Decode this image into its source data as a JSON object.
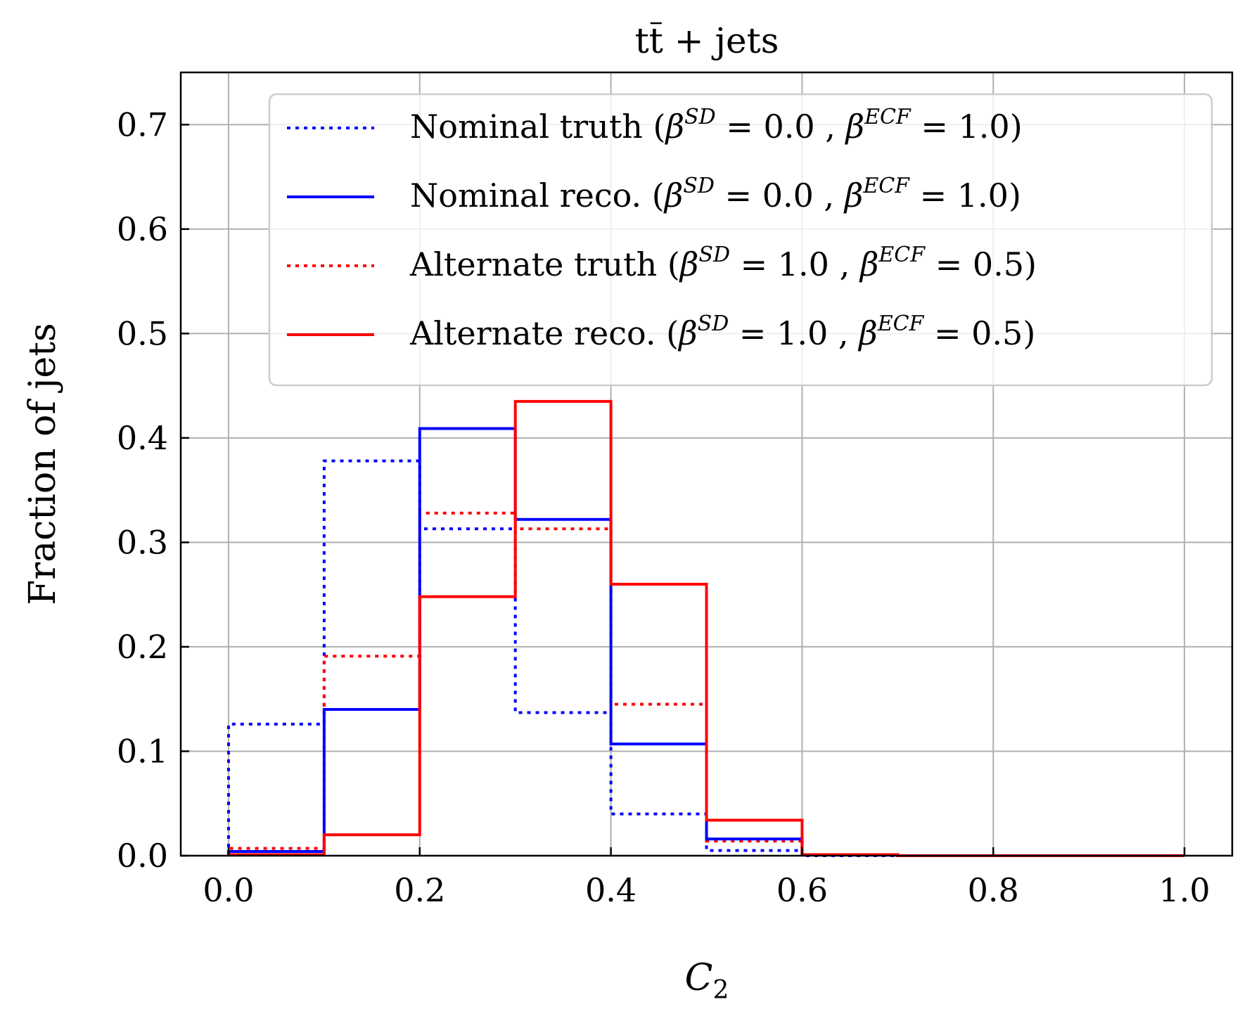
{
  "chart_data": {
    "type": "histogram-step",
    "title": "tt̄ + jets",
    "title_parts": {
      "base": "t",
      "bar": "t",
      "rest": " + jets"
    },
    "xlabel": "C",
    "xlabel_sub": "2",
    "ylabel": "Fraction of jets",
    "xlim": [
      -0.05,
      1.05
    ],
    "ylim": [
      0.0,
      0.75
    ],
    "xticks": [
      0.0,
      0.2,
      0.4,
      0.6,
      0.8,
      1.0
    ],
    "xtick_labels": [
      "0.0",
      "0.2",
      "0.4",
      "0.6",
      "0.8",
      "1.0"
    ],
    "yticks": [
      0.0,
      0.1,
      0.2,
      0.3,
      0.4,
      0.5,
      0.6,
      0.7
    ],
    "ytick_labels": [
      "0.0",
      "0.1",
      "0.2",
      "0.3",
      "0.4",
      "0.5",
      "0.6",
      "0.7"
    ],
    "grid": true,
    "legend_position": "upper-right",
    "bin_edges": [
      0.0,
      0.1,
      0.2,
      0.3,
      0.4,
      0.5,
      0.6,
      0.7,
      0.8,
      0.9,
      1.0
    ],
    "series": [
      {
        "name": "Nominal truth",
        "beta_sd": "0.0",
        "beta_ecf": "1.0",
        "color": "#0000ff",
        "style": "dotted",
        "values": [
          0.126,
          0.378,
          0.313,
          0.137,
          0.04,
          0.005,
          0.0,
          0.0,
          0.0,
          0.0
        ]
      },
      {
        "name": "Nominal reco.",
        "beta_sd": "0.0",
        "beta_ecf": "1.0",
        "color": "#0000ff",
        "style": "solid",
        "values": [
          0.004,
          0.14,
          0.409,
          0.322,
          0.107,
          0.016,
          0.001,
          0.0,
          0.0,
          0.0
        ]
      },
      {
        "name": "Alternate truth",
        "beta_sd": "1.0",
        "beta_ecf": "0.5",
        "color": "#ff0000",
        "style": "dotted",
        "values": [
          0.007,
          0.191,
          0.328,
          0.313,
          0.145,
          0.014,
          0.001,
          0.0,
          0.0,
          0.0
        ]
      },
      {
        "name": "Alternate reco.",
        "beta_sd": "1.0",
        "beta_ecf": "0.5",
        "color": "#ff0000",
        "style": "solid",
        "values": [
          0.001,
          0.02,
          0.248,
          0.435,
          0.26,
          0.034,
          0.001,
          0.0,
          0.0,
          0.0
        ]
      }
    ],
    "legend_labels": {
      "beta_symbol": "β",
      "sd_sup": "SD",
      "ecf_sup": "ECF",
      "open": "(",
      "close": ")",
      "eq": " = ",
      "sep": " ,  "
    }
  }
}
